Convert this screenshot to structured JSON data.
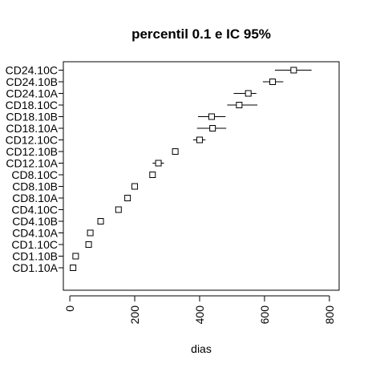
{
  "chart_data": {
    "type": "scatter",
    "title": "percentil 0.1 e IC 95%",
    "xlabel": "dias",
    "ylabel": "",
    "xlim": [
      -20,
      830
    ],
    "x_ticks": [
      0,
      200,
      400,
      600,
      800
    ],
    "x_tick_labels": [
      "0",
      "200",
      "400",
      "600",
      "800"
    ],
    "grid": false,
    "legend": "none",
    "marker": "open-square",
    "colors": {
      "mark": "#000000",
      "axis": "#000000",
      "background": "#ffffff"
    },
    "points": [
      {
        "label": "CD1.10A",
        "estimate": 10,
        "lower": 10,
        "upper": 10
      },
      {
        "label": "CD1.10B",
        "estimate": 18,
        "lower": 18,
        "upper": 18
      },
      {
        "label": "CD1.10C",
        "estimate": 58,
        "lower": 58,
        "upper": 58
      },
      {
        "label": "CD4.10A",
        "estimate": 63,
        "lower": 63,
        "upper": 63
      },
      {
        "label": "CD4.10B",
        "estimate": 95,
        "lower": 95,
        "upper": 95
      },
      {
        "label": "CD4.10C",
        "estimate": 150,
        "lower": 150,
        "upper": 150
      },
      {
        "label": "CD8.10A",
        "estimate": 178,
        "lower": 178,
        "upper": 178
      },
      {
        "label": "CD8.10B",
        "estimate": 200,
        "lower": 200,
        "upper": 200
      },
      {
        "label": "CD8.10C",
        "estimate": 255,
        "lower": 255,
        "upper": 255
      },
      {
        "label": "CD12.10A",
        "estimate": 273,
        "lower": 255,
        "upper": 290
      },
      {
        "label": "CD12.10B",
        "estimate": 325,
        "lower": 325,
        "upper": 325
      },
      {
        "label": "CD12.10C",
        "estimate": 400,
        "lower": 380,
        "upper": 418
      },
      {
        "label": "CD18.10A",
        "estimate": 440,
        "lower": 392,
        "upper": 482
      },
      {
        "label": "CD18.10B",
        "estimate": 437,
        "lower": 395,
        "upper": 480
      },
      {
        "label": "CD18.10C",
        "estimate": 522,
        "lower": 485,
        "upper": 578
      },
      {
        "label": "CD24.10A",
        "estimate": 550,
        "lower": 505,
        "upper": 575
      },
      {
        "label": "CD24.10B",
        "estimate": 625,
        "lower": 595,
        "upper": 658
      },
      {
        "label": "CD24.10C",
        "estimate": 690,
        "lower": 632,
        "upper": 745
      }
    ]
  }
}
